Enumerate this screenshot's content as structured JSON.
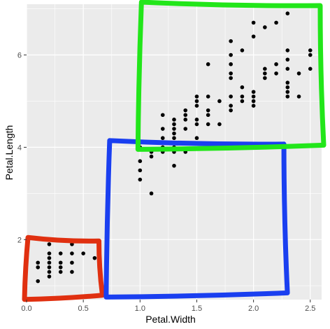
{
  "chart_data": {
    "type": "scatter",
    "xlabel": "Petal.Width",
    "ylabel": "Petal.Length",
    "xlim": [
      0.0,
      2.6
    ],
    "ylim": [
      0.7,
      7.1
    ],
    "xticks": [
      0.0,
      0.5,
      1.0,
      1.5,
      2.0,
      2.5
    ],
    "xtick_labels": [
      "0.0",
      "0.5",
      "1.0",
      "1.5",
      "2.0",
      "2.5"
    ],
    "yticks": [
      2,
      4,
      6
    ],
    "ytick_labels": [
      "2",
      "4",
      "6"
    ],
    "grid": true,
    "points": [
      {
        "x": 0.1,
        "y": 1.1
      },
      {
        "x": 0.1,
        "y": 1.4
      },
      {
        "x": 0.1,
        "y": 1.5
      },
      {
        "x": 0.2,
        "y": 1.2
      },
      {
        "x": 0.2,
        "y": 1.3
      },
      {
        "x": 0.2,
        "y": 1.4
      },
      {
        "x": 0.2,
        "y": 1.5
      },
      {
        "x": 0.2,
        "y": 1.6
      },
      {
        "x": 0.2,
        "y": 1.7
      },
      {
        "x": 0.2,
        "y": 1.9
      },
      {
        "x": 0.3,
        "y": 1.3
      },
      {
        "x": 0.3,
        "y": 1.4
      },
      {
        "x": 0.3,
        "y": 1.5
      },
      {
        "x": 0.3,
        "y": 1.7
      },
      {
        "x": 0.4,
        "y": 1.3
      },
      {
        "x": 0.4,
        "y": 1.5
      },
      {
        "x": 0.4,
        "y": 1.7
      },
      {
        "x": 0.4,
        "y": 1.9
      },
      {
        "x": 0.5,
        "y": 1.7
      },
      {
        "x": 0.6,
        "y": 1.6
      },
      {
        "x": 1.0,
        "y": 3.3
      },
      {
        "x": 1.0,
        "y": 3.5
      },
      {
        "x": 1.0,
        "y": 3.7
      },
      {
        "x": 1.0,
        "y": 4.0
      },
      {
        "x": 1.0,
        "y": 4.1
      },
      {
        "x": 1.1,
        "y": 3.0
      },
      {
        "x": 1.1,
        "y": 3.8
      },
      {
        "x": 1.1,
        "y": 3.9
      },
      {
        "x": 1.2,
        "y": 3.9
      },
      {
        "x": 1.2,
        "y": 4.0
      },
      {
        "x": 1.2,
        "y": 4.2
      },
      {
        "x": 1.2,
        "y": 4.4
      },
      {
        "x": 1.2,
        "y": 4.7
      },
      {
        "x": 1.3,
        "y": 3.6
      },
      {
        "x": 1.3,
        "y": 3.9
      },
      {
        "x": 1.3,
        "y": 4.0
      },
      {
        "x": 1.3,
        "y": 4.1
      },
      {
        "x": 1.3,
        "y": 4.2
      },
      {
        "x": 1.3,
        "y": 4.3
      },
      {
        "x": 1.3,
        "y": 4.4
      },
      {
        "x": 1.3,
        "y": 4.5
      },
      {
        "x": 1.3,
        "y": 4.6
      },
      {
        "x": 1.4,
        "y": 3.9
      },
      {
        "x": 1.4,
        "y": 4.4
      },
      {
        "x": 1.4,
        "y": 4.6
      },
      {
        "x": 1.4,
        "y": 4.7
      },
      {
        "x": 1.4,
        "y": 4.8
      },
      {
        "x": 1.5,
        "y": 4.2
      },
      {
        "x": 1.5,
        "y": 4.5
      },
      {
        "x": 1.5,
        "y": 4.6
      },
      {
        "x": 1.5,
        "y": 4.9
      },
      {
        "x": 1.5,
        "y": 5.0
      },
      {
        "x": 1.5,
        "y": 5.1
      },
      {
        "x": 1.6,
        "y": 4.5
      },
      {
        "x": 1.6,
        "y": 4.7
      },
      {
        "x": 1.6,
        "y": 4.8
      },
      {
        "x": 1.6,
        "y": 5.1
      },
      {
        "x": 1.6,
        "y": 5.8
      },
      {
        "x": 1.7,
        "y": 4.5
      },
      {
        "x": 1.7,
        "y": 5.0
      },
      {
        "x": 1.8,
        "y": 4.8
      },
      {
        "x": 1.8,
        "y": 4.9
      },
      {
        "x": 1.8,
        "y": 5.1
      },
      {
        "x": 1.8,
        "y": 5.5
      },
      {
        "x": 1.8,
        "y": 5.6
      },
      {
        "x": 1.8,
        "y": 5.8
      },
      {
        "x": 1.8,
        "y": 6.0
      },
      {
        "x": 1.8,
        "y": 6.3
      },
      {
        "x": 1.9,
        "y": 5.0
      },
      {
        "x": 1.9,
        "y": 5.1
      },
      {
        "x": 1.9,
        "y": 5.3
      },
      {
        "x": 1.9,
        "y": 6.1
      },
      {
        "x": 2.0,
        "y": 4.9
      },
      {
        "x": 2.0,
        "y": 5.0
      },
      {
        "x": 2.0,
        "y": 5.1
      },
      {
        "x": 2.0,
        "y": 5.2
      },
      {
        "x": 2.0,
        "y": 6.4
      },
      {
        "x": 2.0,
        "y": 6.7
      },
      {
        "x": 2.1,
        "y": 5.5
      },
      {
        "x": 2.1,
        "y": 5.6
      },
      {
        "x": 2.1,
        "y": 5.7
      },
      {
        "x": 2.1,
        "y": 6.6
      },
      {
        "x": 2.2,
        "y": 5.6
      },
      {
        "x": 2.2,
        "y": 5.8
      },
      {
        "x": 2.2,
        "y": 6.7
      },
      {
        "x": 2.3,
        "y": 5.1
      },
      {
        "x": 2.3,
        "y": 5.2
      },
      {
        "x": 2.3,
        "y": 5.3
      },
      {
        "x": 2.3,
        "y": 5.4
      },
      {
        "x": 2.3,
        "y": 5.7
      },
      {
        "x": 2.3,
        "y": 5.9
      },
      {
        "x": 2.3,
        "y": 6.1
      },
      {
        "x": 2.3,
        "y": 6.9
      },
      {
        "x": 2.4,
        "y": 5.1
      },
      {
        "x": 2.4,
        "y": 5.6
      },
      {
        "x": 2.5,
        "y": 5.7
      },
      {
        "x": 2.5,
        "y": 6.0
      },
      {
        "x": 2.5,
        "y": 6.1
      }
    ],
    "annotations": [
      {
        "shape": "hand-drawn-rectangle",
        "color": "#e03010",
        "x_range": [
          0.0,
          0.65
        ],
        "y_range": [
          0.75,
          2.0
        ]
      },
      {
        "shape": "hand-drawn-rectangle",
        "color": "#1a3ff0",
        "x_range": [
          0.72,
          2.28
        ],
        "y_range": [
          0.8,
          4.1
        ]
      },
      {
        "shape": "hand-drawn-rectangle",
        "color": "#22e61a",
        "x_range": [
          1.0,
          2.6
        ],
        "y_range": [
          4.0,
          7.1
        ]
      }
    ]
  },
  "colors": {
    "panel_background": "#ebebeb",
    "grid": "#ffffff",
    "point": "#000000"
  }
}
